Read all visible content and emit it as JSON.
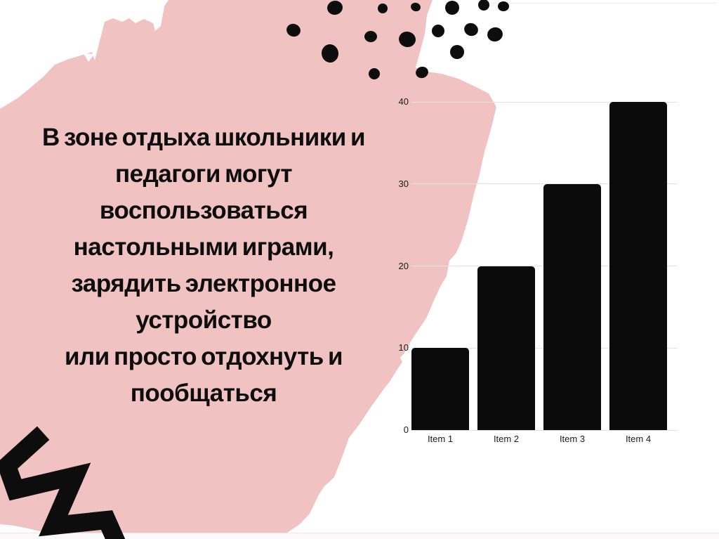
{
  "slide": {
    "background_color": "#ffffff",
    "blob_color": "#f0c3c2",
    "ink_color": "#0d0d0d",
    "bottom_strip_color": "#fbf9f9",
    "text_lines": [
      "В зоне отдыха школьники и",
      "педагоги могут",
      "воспользоваться",
      "настольными играми,",
      "зарядить электронное",
      "устройство",
      "или просто отдохнуть и",
      "пообщаться"
    ]
  },
  "chart_data": {
    "type": "bar",
    "categories": [
      "Item 1",
      "Item 2",
      "Item 3",
      "Item 4"
    ],
    "values": [
      10,
      20,
      30,
      40
    ],
    "title": "",
    "xlabel": "",
    "ylabel": "",
    "ylim": [
      0,
      40
    ],
    "yticks": [
      0,
      10,
      20,
      30,
      40
    ],
    "grid": true,
    "legend": false,
    "bar_color": "#0b0b0b",
    "gridline_color": "#e3e3e3",
    "tick_label_color": "#1a1a1a"
  }
}
